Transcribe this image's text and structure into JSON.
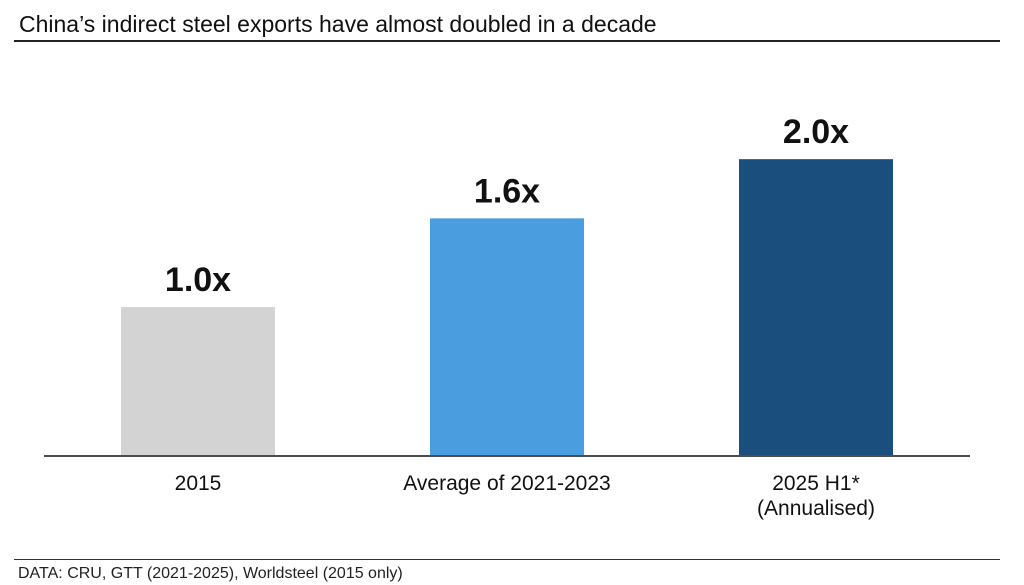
{
  "colors": {
    "axis": "#111111",
    "text": "#111111"
  },
  "chart_data": {
    "type": "bar",
    "title": "China’s indirect steel exports have almost doubled in a decade",
    "categories": [
      "2015",
      "Average of 2021-2023",
      "2025 H1*\n(Annualised)"
    ],
    "values": [
      1.0,
      1.6,
      2.0
    ],
    "data_labels": [
      "1.0x",
      "1.6x",
      "2.0x"
    ],
    "bar_colors": [
      "#d3d3d3",
      "#4a9ddf",
      "#1a4e7c"
    ],
    "xlabel": "",
    "ylabel": "",
    "ylim": [
      0,
      2.4
    ],
    "grid": false,
    "source": "DATA: CRU, GTT (2021-2025), Worldsteel (2015 only)"
  }
}
